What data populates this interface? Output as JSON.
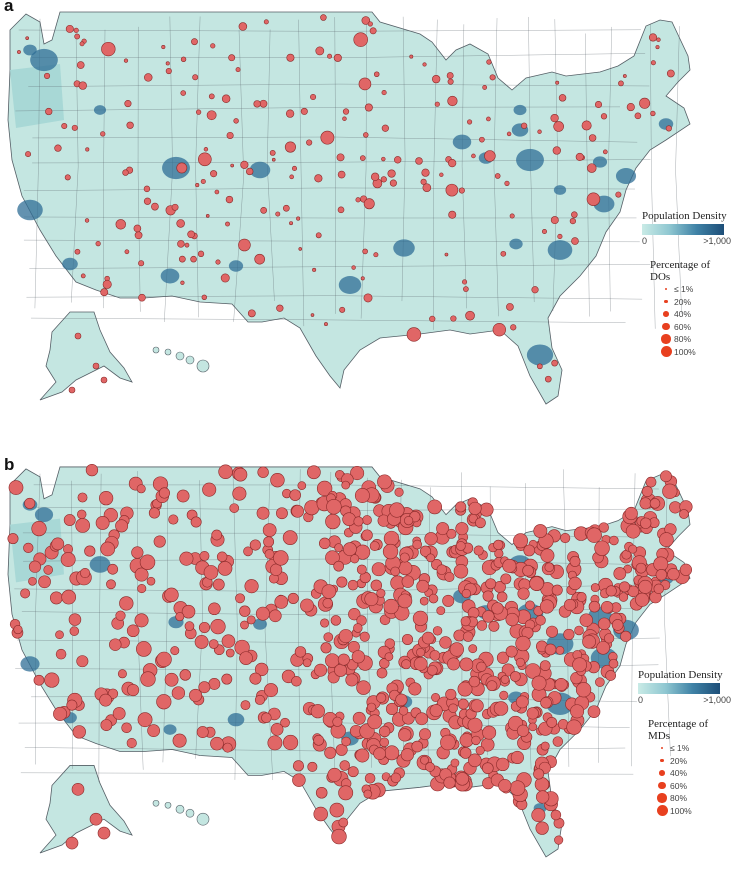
{
  "panels": [
    {
      "label": "a",
      "density_legend": {
        "title": "Population Density",
        "min_label": "0",
        "max_label": ">1,000"
      },
      "size_legend": {
        "title": "Percentage of DOs",
        "items": [
          "≤ 1%",
          "20%",
          "40%",
          "60%",
          "80%",
          "100%"
        ],
        "values": [
          1,
          20,
          40,
          60,
          80,
          100
        ]
      },
      "marker_density": "sparse"
    },
    {
      "label": "b",
      "density_legend": {
        "title": "Population Density",
        "min_label": "0",
        "max_label": ">1,000"
      },
      "size_legend": {
        "title": "Percentage of MDs",
        "items": [
          "≤ 1%",
          "20%",
          "40%",
          "60%",
          "80%",
          "100%"
        ],
        "values": [
          1,
          20,
          40,
          60,
          80,
          100
        ]
      },
      "marker_density": "dense"
    }
  ],
  "colors": {
    "land": "#c4e6e1",
    "border": "#555f66",
    "density_high": "#2f6d96",
    "marker_fill": "#e06666",
    "marker_stroke": "#8a2a2a",
    "legend_marker": "#e8401f"
  }
}
